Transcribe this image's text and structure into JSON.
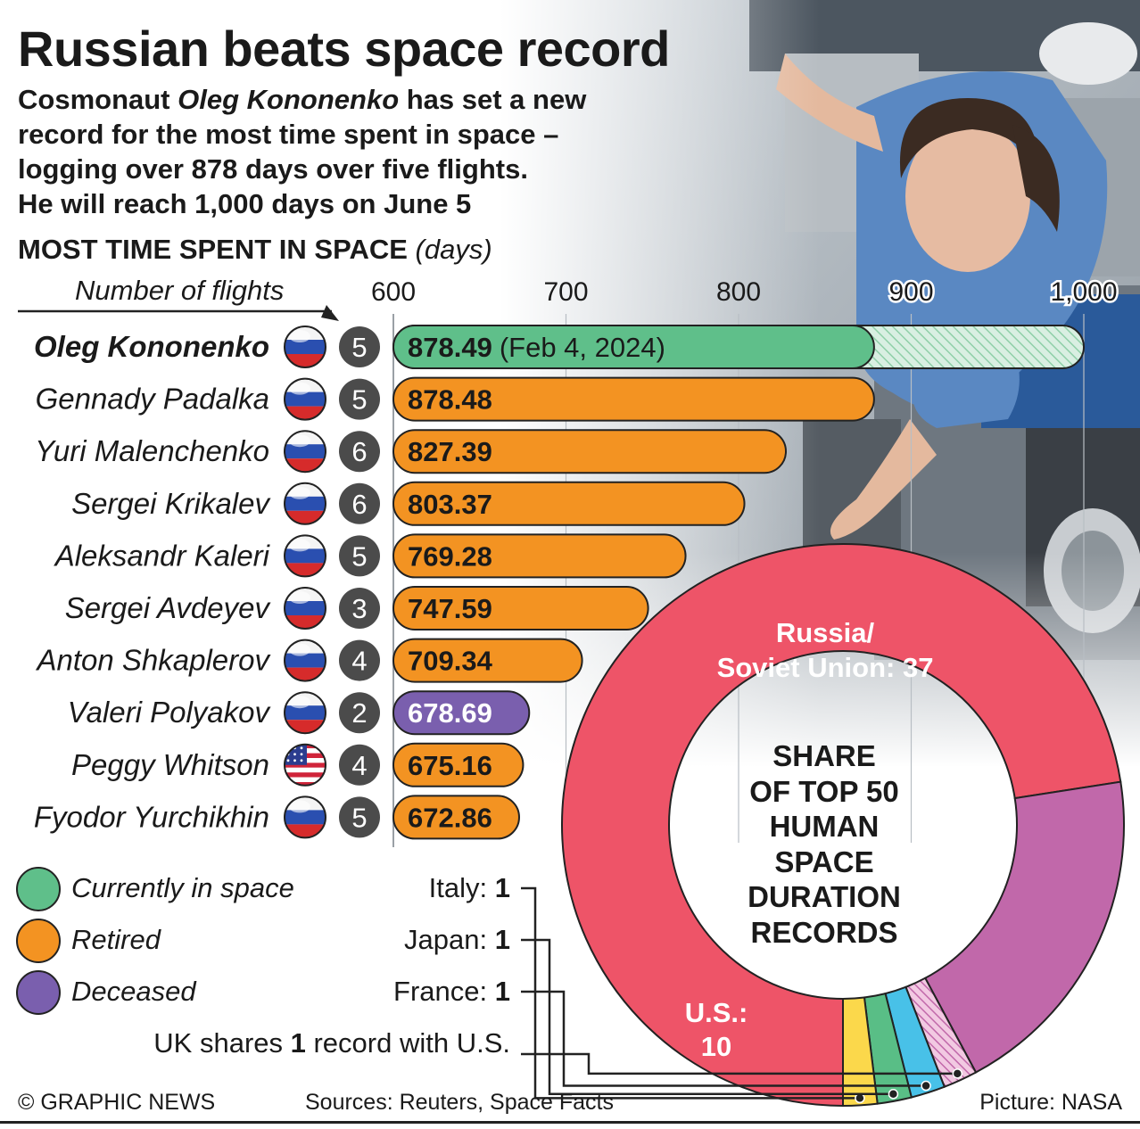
{
  "title": "Russian beats space record",
  "subtitle": {
    "line1_pre": "Cosmonaut ",
    "line1_name": "Oleg Kononenko",
    "line1_post": " has set a new",
    "line2": "record for the most time spent in space –",
    "line3": "logging over 878 days over five flights.",
    "line4": "He will reach 1,000 days on June 5"
  },
  "colors": {
    "currently_in_space": "#5fbf8a",
    "retired": "#f39322",
    "deceased": "#7a5fae",
    "russia": "#ee5468",
    "us": "#c168aa",
    "italy": "#fbd84b",
    "japan": "#59be86",
    "france": "#48c1e8"
  },
  "chart_data": [
    {
      "type": "bar",
      "title": "MOST TIME SPENT IN SPACE",
      "unit": "(days)",
      "flights_label": "Number of flights",
      "x_ticks": [
        "600",
        "700",
        "800",
        "900",
        "1,000"
      ],
      "xlim": [
        600,
        1000
      ],
      "rows": [
        {
          "name": "Oleg Kononenko",
          "flag": "russia-flag",
          "flights": "5",
          "value": 878.49,
          "label": "878.49",
          "note": "(Feb 4, 2024)",
          "status": "currently_in_space",
          "projected": 1000
        },
        {
          "name": "Gennady Padalka",
          "flag": "russia-flag",
          "flights": "5",
          "value": 878.48,
          "label": "878.48",
          "status": "retired"
        },
        {
          "name": "Yuri Malenchenko",
          "flag": "russia-flag",
          "flights": "6",
          "value": 827.39,
          "label": "827.39",
          "status": "retired"
        },
        {
          "name": "Sergei Krikalev",
          "flag": "russia-flag",
          "flights": "6",
          "value": 803.37,
          "label": "803.37",
          "status": "retired"
        },
        {
          "name": "Aleksandr Kaleri",
          "flag": "russia-flag",
          "flights": "5",
          "value": 769.28,
          "label": "769.28",
          "status": "retired"
        },
        {
          "name": "Sergei Avdeyev",
          "flag": "russia-flag",
          "flights": "3",
          "value": 747.59,
          "label": "747.59",
          "status": "retired"
        },
        {
          "name": "Anton Shkaplerov",
          "flag": "russia-flag",
          "flights": "4",
          "value": 709.34,
          "label": "709.34",
          "status": "retired"
        },
        {
          "name": "Valeri Polyakov",
          "flag": "russia-flag",
          "flights": "2",
          "value": 678.69,
          "label": "678.69",
          "status": "deceased"
        },
        {
          "name": "Peggy Whitson",
          "flag": "us-flag",
          "flights": "4",
          "value": 675.16,
          "label": "675.16",
          "status": "retired"
        },
        {
          "name": "Fyodor Yurchikhin",
          "flag": "russia-flag",
          "flights": "5",
          "value": 672.86,
          "label": "672.86",
          "status": "retired"
        }
      ],
      "legend": [
        {
          "key": "currently_in_space",
          "label": "Currently in space"
        },
        {
          "key": "retired",
          "label": "Retired"
        },
        {
          "key": "deceased",
          "label": "Deceased"
        }
      ]
    },
    {
      "type": "pie",
      "title": "SHARE OF TOP 50 HUMAN SPACE DURATION RECORDS",
      "title_lines": [
        "SHARE",
        "OF TOP 50",
        "HUMAN",
        "SPACE",
        "DURATION",
        "RECORDS"
      ],
      "slices": [
        {
          "key": "russia",
          "value": 37,
          "label_lines": [
            "Russia/",
            "Soviet Union: 37"
          ]
        },
        {
          "key": "us",
          "value": 10,
          "label_lines": [
            "U.S.:",
            "10"
          ]
        },
        {
          "key": "uk_us",
          "value": 1,
          "pattern": "hatched"
        },
        {
          "key": "france",
          "value": 1
        },
        {
          "key": "japan",
          "value": 1
        },
        {
          "key": "italy",
          "value": 1
        }
      ],
      "callouts": {
        "italy": {
          "name": "Italy: ",
          "value": "1"
        },
        "japan": {
          "name": "Japan: ",
          "value": "1"
        },
        "france": {
          "name": "France: ",
          "value": "1"
        },
        "uk": {
          "pre": "UK shares ",
          "value": "1",
          "post": " record with U.S."
        }
      }
    }
  ],
  "footer": {
    "left": "© GRAPHIC NEWS",
    "center": "Sources: Reuters, Space Facts",
    "right": "Picture: NASA"
  }
}
